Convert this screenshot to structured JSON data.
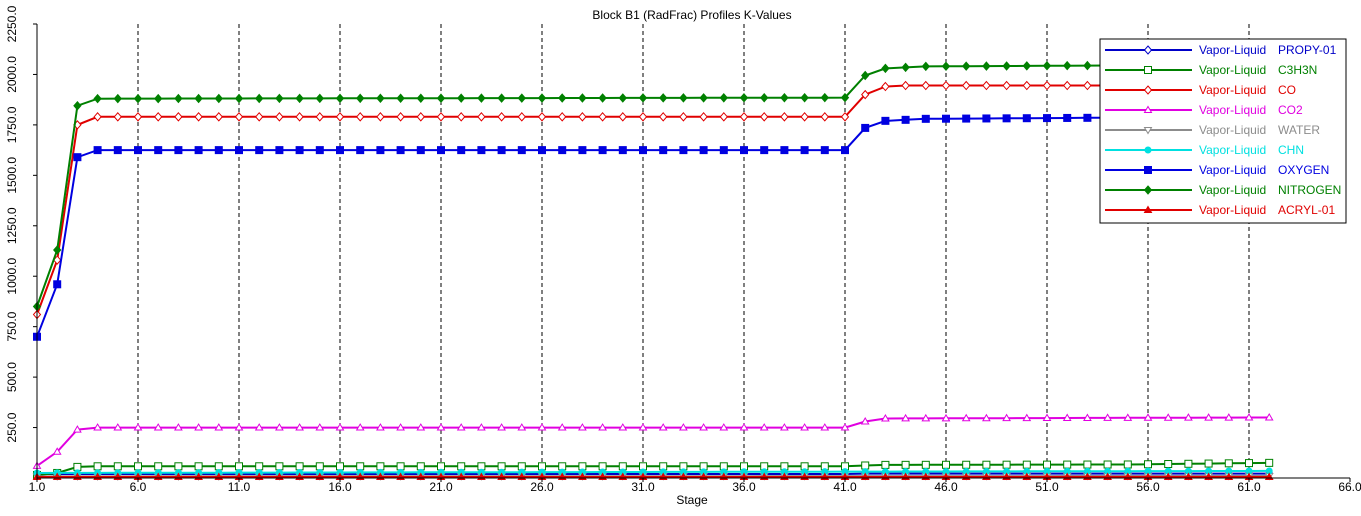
{
  "chart_data": {
    "type": "line",
    "title": "Block B1 (RadFrac) Profiles K-Values",
    "xlabel": "Stage",
    "ylabel": "",
    "xlim": [
      1,
      66
    ],
    "ylim": [
      0,
      2250
    ],
    "x_ticks": [
      "1.0",
      "6.0",
      "11.0",
      "16.0",
      "21.0",
      "26.0",
      "31.0",
      "36.0",
      "41.0",
      "46.0",
      "51.0",
      "56.0",
      "61.0",
      "66.0"
    ],
    "y_ticks": [
      "250.0",
      "500.0",
      "750.0",
      "1000.0",
      "1250.0",
      "1500.0",
      "1750.0",
      "2000.0",
      "2250.0"
    ],
    "legend_position": "top-right",
    "grid": "vertical-dashed",
    "series": [
      {
        "prefix": "Vapor-Liquid",
        "name": "PROPY-01",
        "color": "#0000c8",
        "marker": "diamond-open",
        "steps": [
          [
            1,
            20
          ],
          [
            2,
            20
          ],
          [
            41,
            20
          ],
          [
            42,
            22
          ],
          [
            62,
            22
          ]
        ]
      },
      {
        "prefix": "Vapor-Liquid",
        "name": "C3H3N",
        "color": "#008000",
        "marker": "square-open",
        "steps": [
          [
            1,
            15
          ],
          [
            2,
            25
          ],
          [
            3,
            55
          ],
          [
            4,
            58
          ],
          [
            41,
            58
          ],
          [
            42,
            62
          ],
          [
            43,
            65
          ],
          [
            55,
            67
          ],
          [
            62,
            75
          ]
        ]
      },
      {
        "prefix": "Vapor-Liquid",
        "name": "CO",
        "color": "#e00000",
        "marker": "diamond-open",
        "steps": [
          [
            1,
            810
          ],
          [
            2,
            1080
          ],
          [
            3,
            1750
          ],
          [
            4,
            1790
          ],
          [
            41,
            1790
          ],
          [
            42,
            1900
          ],
          [
            43,
            1940
          ],
          [
            44,
            1945
          ],
          [
            55,
            1945
          ]
        ]
      },
      {
        "prefix": "Vapor-Liquid",
        "name": "CO2",
        "color": "#e000e0",
        "marker": "triangle-open",
        "steps": [
          [
            1,
            60
          ],
          [
            2,
            130
          ],
          [
            3,
            240
          ],
          [
            4,
            250
          ],
          [
            41,
            250
          ],
          [
            42,
            280
          ],
          [
            43,
            295
          ],
          [
            62,
            300
          ]
        ]
      },
      {
        "prefix": "Vapor-Liquid",
        "name": "WATER",
        "color": "#8c8c8c",
        "marker": "triangle-down-open",
        "steps": [
          [
            1,
            8
          ],
          [
            62,
            10
          ]
        ]
      },
      {
        "prefix": "Vapor-Liquid",
        "name": "CHN",
        "color": "#00e0e0",
        "marker": "circle",
        "steps": [
          [
            1,
            25
          ],
          [
            62,
            35
          ]
        ]
      },
      {
        "prefix": "Vapor-Liquid",
        "name": "OXYGEN",
        "color": "#0000e0",
        "marker": "square",
        "steps": [
          [
            1,
            700
          ],
          [
            2,
            960
          ],
          [
            3,
            1590
          ],
          [
            4,
            1625
          ],
          [
            41,
            1625
          ],
          [
            42,
            1735
          ],
          [
            43,
            1770
          ],
          [
            44,
            1775
          ],
          [
            45,
            1780
          ],
          [
            53,
            1785
          ],
          [
            55,
            1785
          ]
        ]
      },
      {
        "prefix": "Vapor-Liquid",
        "name": "NITROGEN",
        "color": "#008000",
        "marker": "diamond",
        "steps": [
          [
            1,
            850
          ],
          [
            2,
            1130
          ],
          [
            3,
            1845
          ],
          [
            4,
            1880
          ],
          [
            41,
            1885
          ],
          [
            42,
            1995
          ],
          [
            43,
            2030
          ],
          [
            44,
            2035
          ],
          [
            45,
            2040
          ],
          [
            55,
            2045
          ]
        ]
      },
      {
        "prefix": "Vapor-Liquid",
        "name": "ACRYL-01",
        "color": "#e00000",
        "marker": "triangle",
        "steps": [
          [
            1,
            5
          ],
          [
            62,
            5
          ]
        ]
      }
    ]
  }
}
